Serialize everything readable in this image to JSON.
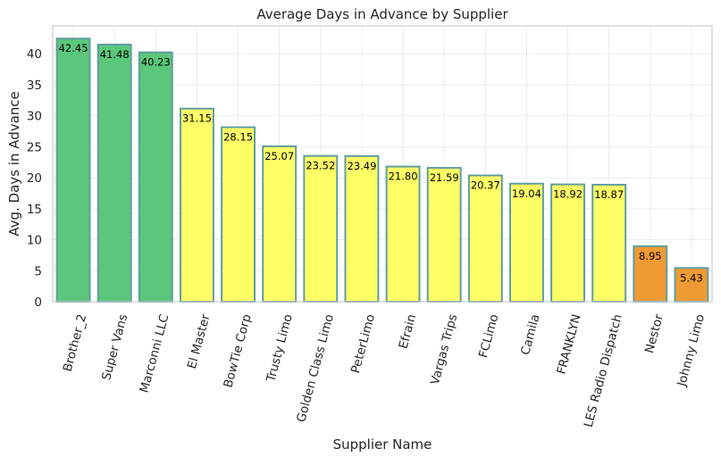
{
  "chart_data": {
    "type": "bar",
    "title": "Average Days in Advance by Supplier",
    "xlabel": "Supplier Name",
    "ylabel": "Avg. Days in Advance",
    "ylim": [
      0,
      44.5
    ],
    "yticks": [
      0,
      5,
      10,
      15,
      20,
      25,
      30,
      35,
      40
    ],
    "grid": true,
    "categories": [
      "Brother_2",
      "Super Vans",
      "Marconni LLC",
      "El Master",
      "BowTie Corp",
      "Trusty Limo",
      "Golden Class Limo",
      "PeterLimo",
      "Efrain",
      "Vargas Trips",
      "FCLimo",
      "Camila",
      "FRANKLYN",
      "LES Radio Dispatch",
      "Nestor",
      "Johnny Limo"
    ],
    "values": [
      42.45,
      41.48,
      40.23,
      31.15,
      28.15,
      25.07,
      23.52,
      23.49,
      21.8,
      21.59,
      20.37,
      19.04,
      18.92,
      18.87,
      8.95,
      5.43
    ],
    "value_labels": [
      "42.45",
      "41.48",
      "40.23",
      "31.15",
      "28.15",
      "25.07",
      "23.52",
      "23.49",
      "21.80",
      "21.59",
      "20.37",
      "19.04",
      "18.92",
      "18.87",
      "8.95",
      "5.43"
    ],
    "bar_colors": [
      "#5bc77b",
      "#5bc77b",
      "#5bc77b",
      "#ffff66",
      "#ffff66",
      "#ffff66",
      "#ffff66",
      "#ffff66",
      "#ffff66",
      "#ffff66",
      "#ffff66",
      "#ffff66",
      "#ffff66",
      "#ffff66",
      "#ef9a33",
      "#ef9a33"
    ],
    "bar_edge_color": "#5f9ea0"
  }
}
